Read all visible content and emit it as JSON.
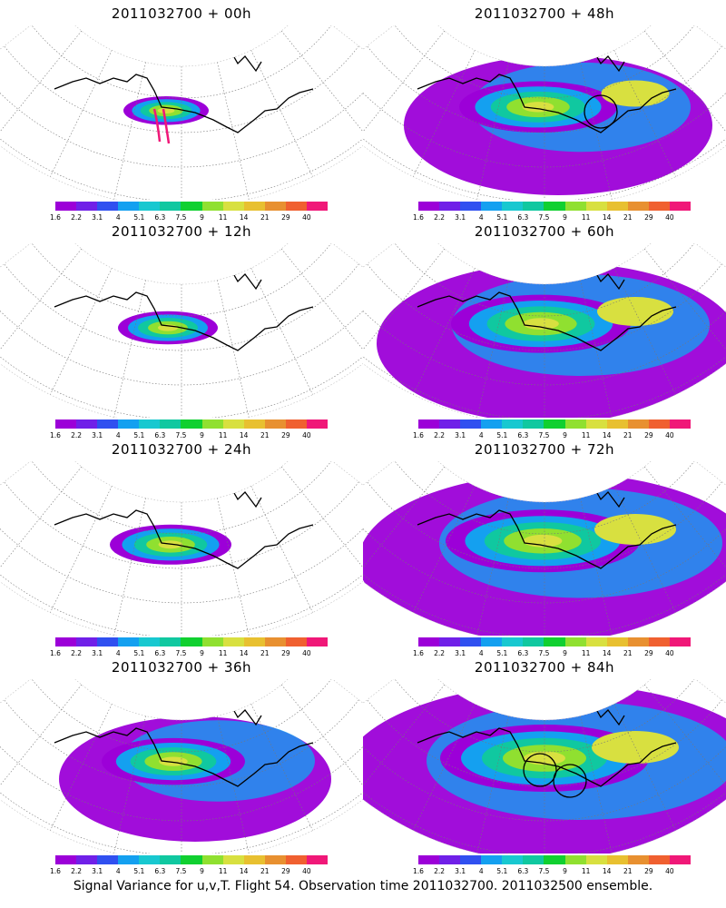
{
  "panels": [
    {
      "title": "2011032700 + 00h",
      "col": 0,
      "row": 0,
      "spread": 0.15,
      "circles": 0,
      "track": true
    },
    {
      "title": "2011032700 + 48h",
      "col": 1,
      "row": 0,
      "spread": 0.65,
      "circles": 1,
      "track": false
    },
    {
      "title": "2011032700 + 12h",
      "col": 0,
      "row": 1,
      "spread": 0.25,
      "circles": 0,
      "track": false
    },
    {
      "title": "2011032700 + 60h",
      "col": 1,
      "row": 1,
      "spread": 0.8,
      "circles": 0,
      "track": false
    },
    {
      "title": "2011032700 + 24h",
      "col": 0,
      "row": 2,
      "spread": 0.4,
      "circles": 0,
      "track": false
    },
    {
      "title": "2011032700 + 72h",
      "col": 1,
      "row": 2,
      "spread": 0.9,
      "circles": 0,
      "track": false
    },
    {
      "title": "2011032700 + 36h",
      "col": 0,
      "row": 3,
      "spread": 0.55,
      "circles": 0,
      "track": false
    },
    {
      "title": "2011032700 + 84h",
      "col": 1,
      "row": 3,
      "spread": 1.0,
      "circles": 2,
      "track": false
    }
  ],
  "colorbar": {
    "labels": [
      "1.6",
      "2.2",
      "3.1",
      "4",
      "5.1",
      "6.3",
      "7.5",
      "9",
      "11",
      "14",
      "21",
      "29",
      "40"
    ],
    "colors": [
      "#9c00d8",
      "#7020e8",
      "#3050f0",
      "#14a0f0",
      "#18c8d0",
      "#10c8a0",
      "#10d030",
      "#90e030",
      "#d8e040",
      "#e8c030",
      "#e89030",
      "#f06030",
      "#f01878"
    ]
  },
  "footer": "Signal Variance for u,v,T. Flight 54. Observation time 2011032700. 2011032500 ensemble."
}
